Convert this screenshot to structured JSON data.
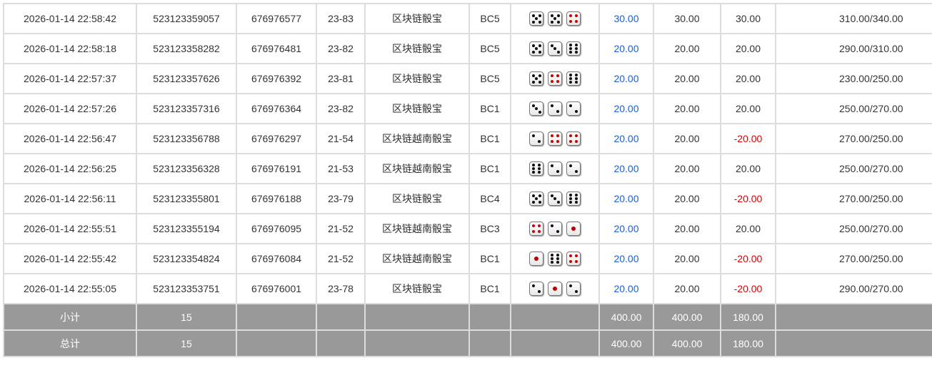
{
  "colors": {
    "link": "#1a5fd6",
    "negative": "#e00000",
    "footer_bg": "#999999",
    "red_pip": "#cc0000"
  },
  "rows": [
    {
      "time": "2026-01-14 22:58:42",
      "order_no": "523123359057",
      "issue": "676976577",
      "table": "23-83",
      "game": "区块链骰宝",
      "bc": "BC5",
      "dice": [
        5,
        5,
        4
      ],
      "bet": "30.00",
      "valid": "30.00",
      "win": "30.00",
      "balance": "310.00/340.00"
    },
    {
      "time": "2026-01-14 22:58:18",
      "order_no": "523123358282",
      "issue": "676976481",
      "table": "23-82",
      "game": "区块链骰宝",
      "bc": "BC5",
      "dice": [
        5,
        3,
        6
      ],
      "bet": "20.00",
      "valid": "20.00",
      "win": "20.00",
      "balance": "290.00/310.00"
    },
    {
      "time": "2026-01-14 22:57:37",
      "order_no": "523123357626",
      "issue": "676976392",
      "table": "23-81",
      "game": "区块链骰宝",
      "bc": "BC5",
      "dice": [
        5,
        4,
        6
      ],
      "bet": "20.00",
      "valid": "20.00",
      "win": "20.00",
      "balance": "230.00/250.00"
    },
    {
      "time": "2026-01-14 22:57:26",
      "order_no": "523123357316",
      "issue": "676976364",
      "table": "23-82",
      "game": "区块链骰宝",
      "bc": "BC1",
      "dice": [
        3,
        2,
        2
      ],
      "bet": "20.00",
      "valid": "20.00",
      "win": "20.00",
      "balance": "250.00/270.00"
    },
    {
      "time": "2026-01-14 22:56:47",
      "order_no": "523123356788",
      "issue": "676976297",
      "table": "21-54",
      "game": "区块链越南骰宝",
      "bc": "BC1",
      "dice": [
        2,
        4,
        4
      ],
      "bet": "20.00",
      "valid": "20.00",
      "win": "-20.00",
      "balance": "270.00/250.00"
    },
    {
      "time": "2026-01-14 22:56:25",
      "order_no": "523123356328",
      "issue": "676976191",
      "table": "21-53",
      "game": "区块链越南骰宝",
      "bc": "BC1",
      "dice": [
        6,
        2,
        2
      ],
      "bet": "20.00",
      "valid": "20.00",
      "win": "20.00",
      "balance": "250.00/270.00"
    },
    {
      "time": "2026-01-14 22:56:11",
      "order_no": "523123355801",
      "issue": "676976188",
      "table": "23-79",
      "game": "区块链骰宝",
      "bc": "BC4",
      "dice": [
        5,
        3,
        6
      ],
      "bet": "20.00",
      "valid": "20.00",
      "win": "-20.00",
      "balance": "270.00/250.00"
    },
    {
      "time": "2026-01-14 22:55:51",
      "order_no": "523123355194",
      "issue": "676976095",
      "table": "21-52",
      "game": "区块链越南骰宝",
      "bc": "BC3",
      "dice": [
        4,
        2,
        1
      ],
      "bet": "20.00",
      "valid": "20.00",
      "win": "20.00",
      "balance": "250.00/270.00"
    },
    {
      "time": "2026-01-14 22:55:42",
      "order_no": "523123354824",
      "issue": "676976084",
      "table": "21-52",
      "game": "区块链越南骰宝",
      "bc": "BC1",
      "dice": [
        1,
        6,
        4
      ],
      "bet": "20.00",
      "valid": "20.00",
      "win": "-20.00",
      "balance": "270.00/250.00"
    },
    {
      "time": "2026-01-14 22:55:05",
      "order_no": "523123353751",
      "issue": "676976001",
      "table": "23-78",
      "game": "区块链骰宝",
      "bc": "BC1",
      "dice": [
        2,
        1,
        2
      ],
      "bet": "20.00",
      "valid": "20.00",
      "win": "-20.00",
      "balance": "290.00/270.00"
    }
  ],
  "subtotal": {
    "label": "小计",
    "count": "15",
    "bet": "400.00",
    "valid": "400.00",
    "win": "180.00"
  },
  "total": {
    "label": "总计",
    "count": "15",
    "bet": "400.00",
    "valid": "400.00",
    "win": "180.00"
  }
}
